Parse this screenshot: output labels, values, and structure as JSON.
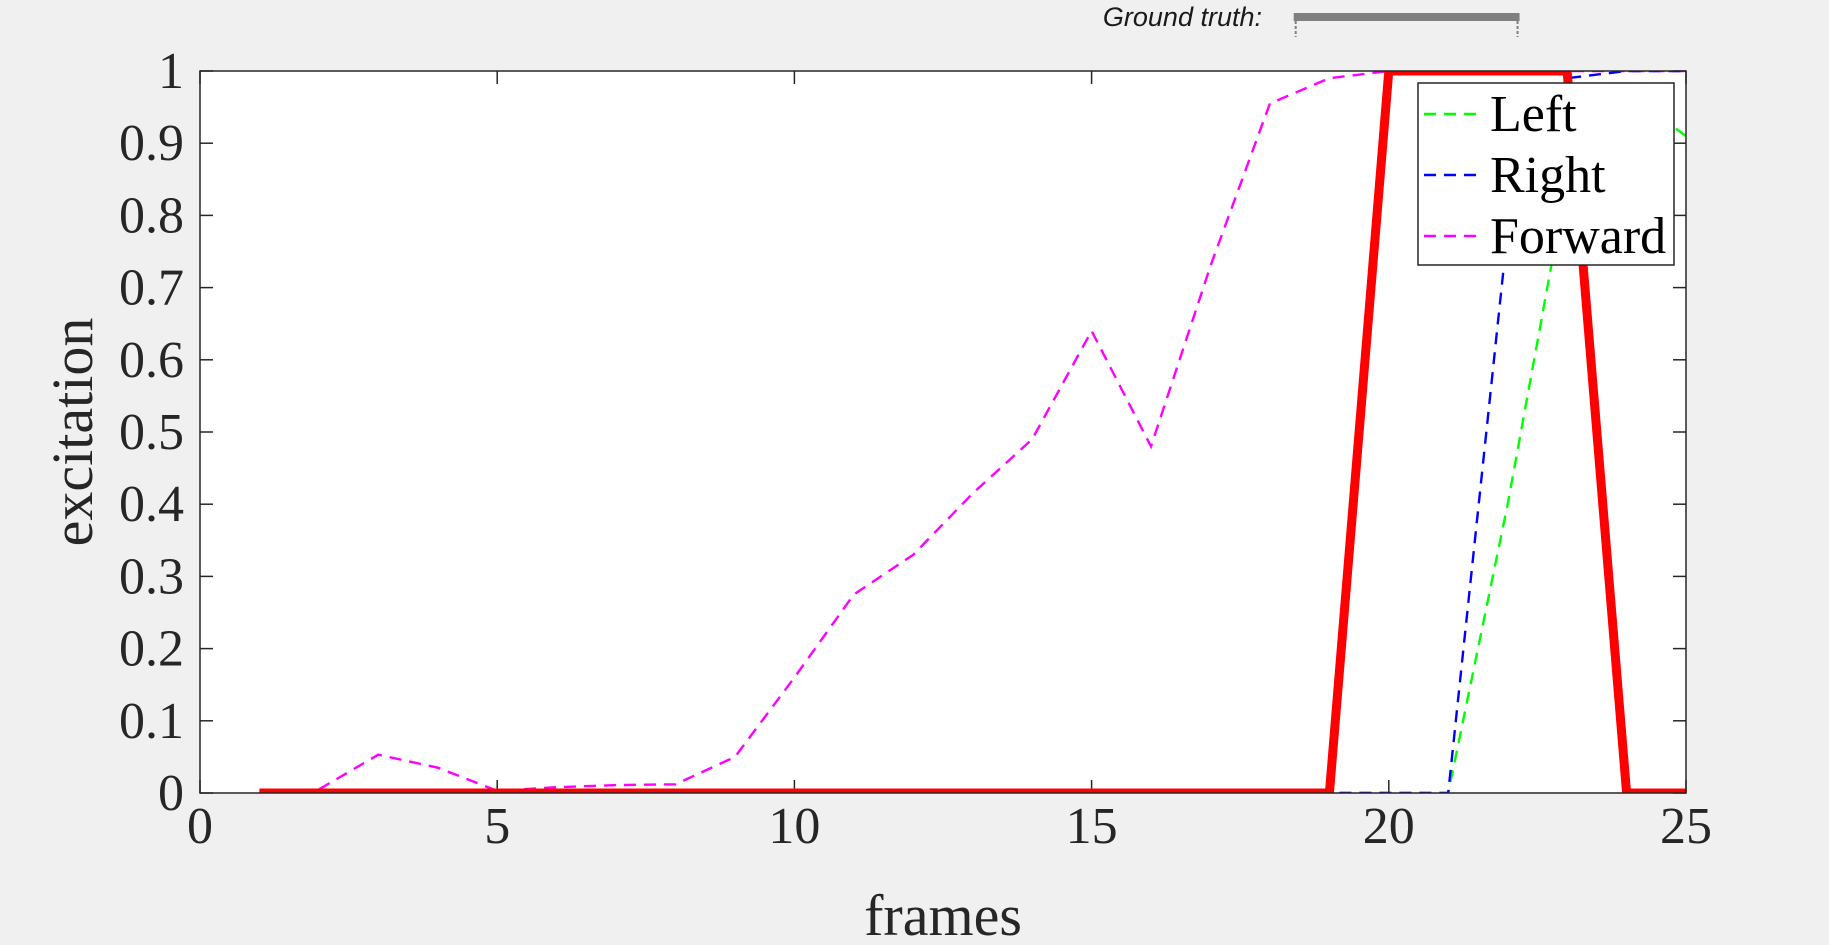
{
  "ground_truth": {
    "label": "Ground truth:",
    "bar_start": 18.4,
    "bar_end": 22.2,
    "bar_color": "#808080"
  },
  "chart_data": {
    "type": "line",
    "title": "",
    "xlabel": "frames",
    "ylabel": "excitation",
    "xlim": [
      0,
      25
    ],
    "ylim": [
      0,
      1
    ],
    "x_ticks": [
      0,
      5,
      10,
      15,
      20,
      25
    ],
    "y_ticks": [
      0,
      0.1,
      0.2,
      0.3,
      0.4,
      0.5,
      0.6,
      0.7,
      0.8,
      0.9,
      1
    ],
    "x_tick_labels": [
      "0",
      "5",
      "10",
      "15",
      "20",
      "25"
    ],
    "y_tick_labels": [
      "0",
      "0.1",
      "0.2",
      "0.3",
      "0.4",
      "0.5",
      "0.6",
      "0.7",
      "0.8",
      "0.9",
      "1"
    ],
    "grid": false,
    "legend_position": "top-right",
    "series": [
      {
        "name": "Left",
        "color": "#00ff00",
        "style": "dashed",
        "in_legend": true,
        "x": [
          1,
          2,
          3,
          4,
          5,
          6,
          7,
          8,
          9,
          10,
          11,
          12,
          13,
          14,
          15,
          16,
          17,
          18,
          19,
          20,
          21,
          22,
          23,
          24,
          25
        ],
        "y": [
          0,
          0,
          0,
          0,
          0,
          0,
          0,
          0,
          0,
          0,
          0,
          0,
          0,
          0,
          0,
          0,
          0,
          0,
          0,
          0,
          0,
          0.4,
          0.85,
          0.97,
          0.91
        ]
      },
      {
        "name": "Right",
        "color": "#0000ff",
        "style": "dashed",
        "in_legend": true,
        "x": [
          1,
          2,
          3,
          4,
          5,
          6,
          7,
          8,
          9,
          10,
          11,
          12,
          13,
          14,
          15,
          16,
          17,
          18,
          19,
          20,
          21,
          22,
          23,
          24,
          25
        ],
        "y": [
          0,
          0,
          0,
          0,
          0,
          0,
          0,
          0,
          0,
          0,
          0,
          0,
          0,
          0,
          0,
          0,
          0,
          0,
          0,
          0,
          0,
          0.78,
          0.99,
          1,
          1
        ]
      },
      {
        "name": "Forward",
        "color": "#ff00ff",
        "style": "dashed",
        "in_legend": true,
        "x": [
          1,
          2,
          3,
          4,
          5,
          6,
          7,
          8,
          9,
          10,
          11,
          12,
          13,
          14,
          15,
          16,
          17,
          18,
          19,
          20,
          21,
          22,
          23,
          24,
          25
        ],
        "y": [
          0,
          0.005,
          0.053,
          0.035,
          0.003,
          0.008,
          0.011,
          0.012,
          0.05,
          0.16,
          0.275,
          0.33,
          0.415,
          0.49,
          0.64,
          0.48,
          0.73,
          0.955,
          0.99,
          1.0,
          1.0,
          1.0,
          1.0,
          1.0,
          1.0
        ]
      },
      {
        "name": "",
        "color": "#ff0000",
        "style": "solid",
        "in_legend": false,
        "x": [
          1,
          19,
          20,
          23,
          24,
          25
        ],
        "y": [
          0,
          0,
          1,
          1,
          0,
          0
        ]
      }
    ]
  }
}
